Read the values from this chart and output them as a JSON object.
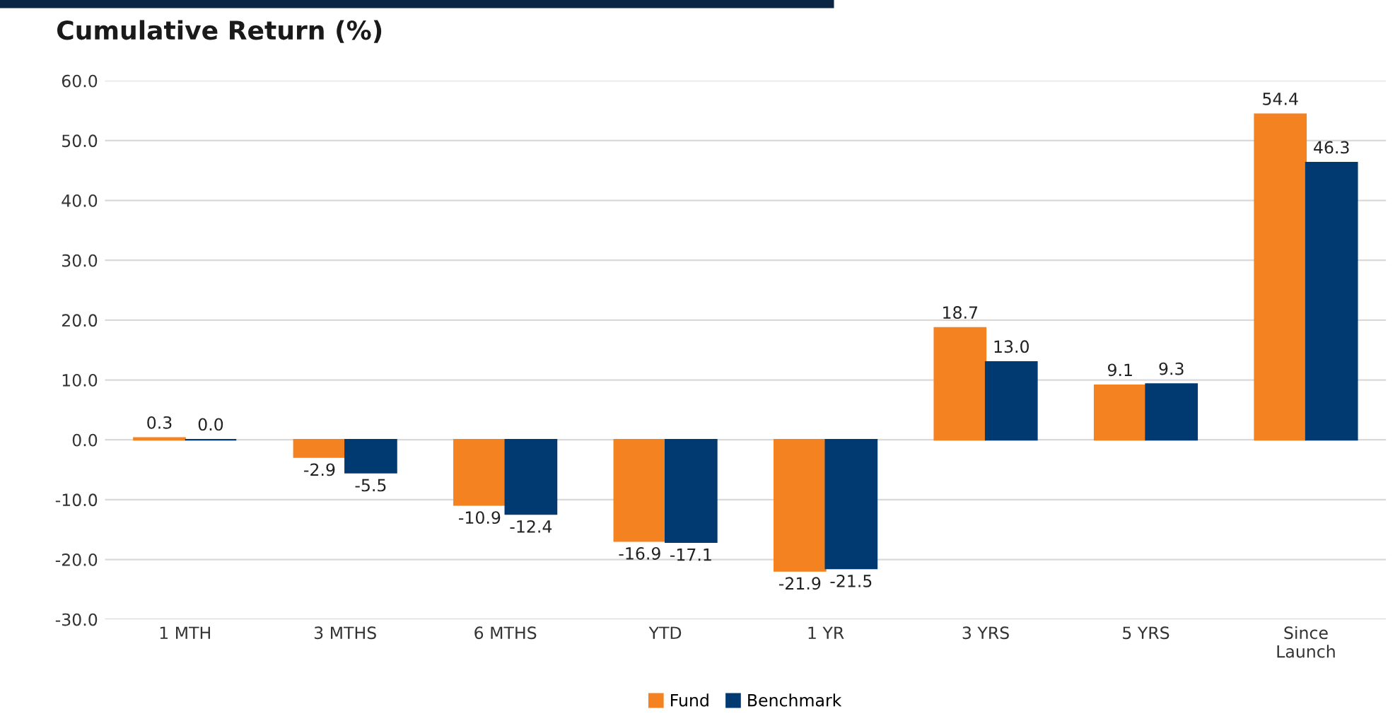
{
  "chart_data": {
    "type": "bar",
    "title": "Cumulative Return (%)",
    "categories": [
      "1 MTH",
      "3 MTHS",
      "6 MTHS",
      "YTD",
      "1 YR",
      "3 YRS",
      "5 YRS",
      "Since\nLaunch"
    ],
    "series": [
      {
        "name": "Fund",
        "color": "#f58220",
        "values": [
          0.3,
          -2.9,
          -10.9,
          -16.9,
          -21.9,
          18.7,
          9.1,
          54.4
        ],
        "value_labels": [
          "0.3",
          "-2.9",
          "-10.9",
          "-16.9",
          "-21.9",
          "18.7",
          "9.1",
          "54.4"
        ]
      },
      {
        "name": "Benchmark",
        "color": "#003a70",
        "values": [
          0.0,
          -5.5,
          -12.4,
          -17.1,
          -21.5,
          13.0,
          9.3,
          46.3
        ],
        "value_labels": [
          "0.0",
          "-5.5",
          "-12.4",
          "-17.1",
          "-21.5",
          "13.0",
          "9.3",
          "46.3"
        ]
      }
    ],
    "ylim": [
      -30,
      60
    ],
    "yticks": [
      {
        "value": -30,
        "label": "-30.0"
      },
      {
        "value": -20,
        "label": "-20.0"
      },
      {
        "value": -10,
        "label": "-10.0"
      },
      {
        "value": 0,
        "label": "0.0"
      },
      {
        "value": 10,
        "label": "10.0"
      },
      {
        "value": 20,
        "label": "20.0"
      },
      {
        "value": 30,
        "label": "30.0"
      },
      {
        "value": 40,
        "label": "40.0"
      },
      {
        "value": 50,
        "label": "50.0"
      },
      {
        "value": 60,
        "label": "60.0"
      }
    ],
    "grid": "y",
    "legend": "bottom"
  }
}
